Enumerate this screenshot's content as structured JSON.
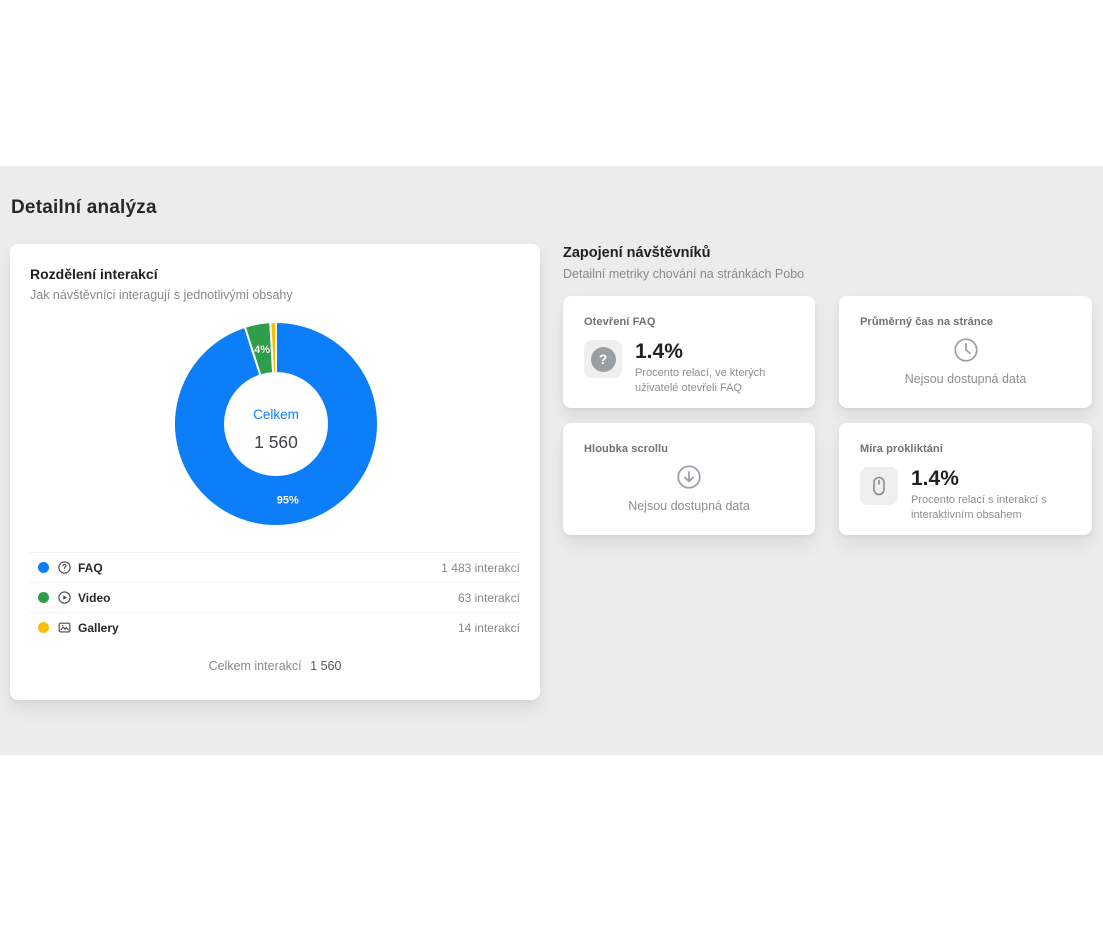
{
  "page": {
    "title": "Detailní analýza"
  },
  "theme": {
    "band_bg": "#ececec",
    "card_bg": "#ffffff",
    "accent_blue": "#0d7efa",
    "green": "#2e9e4a",
    "yellow": "#fbbc04",
    "text_dark": "#202124",
    "text_gray": "#87898c"
  },
  "interactions": {
    "title": "Rozdělení interakcí",
    "subtitle": "Jak návštěvníci interagují s jednotlivými obsahy",
    "legend": [
      {
        "label": "FAQ",
        "value_text": "1 483 interakcí",
        "icon": "question-circle-icon"
      },
      {
        "label": "Video",
        "value_text": "63 interakcí",
        "icon": "play-circle-icon"
      },
      {
        "label": "Gallery",
        "value_text": "14 interakcí",
        "icon": "gallery-icon"
      }
    ],
    "footer_label": "Celkem interakcí",
    "footer_value": "1 560"
  },
  "chart_data": {
    "type": "pie",
    "subtype": "donut",
    "title": "Rozdělení interakcí",
    "categories": [
      "FAQ",
      "Video",
      "Gallery"
    ],
    "values": [
      1483,
      63,
      14
    ],
    "total": 1560,
    "colors": [
      "#0d7efa",
      "#2e9e4a",
      "#fbbc04"
    ],
    "slice_labels": [
      "95%",
      "4%",
      ""
    ],
    "center_label": "Celkem",
    "center_value": "1 560",
    "cutout_ratio": 0.5,
    "start_angle_deg": 0,
    "direction": "clockwise",
    "legend_position": "bottom"
  },
  "engagement": {
    "title": "Zapojení návštěvníků",
    "subtitle": "Detailní metriky chování na stránkách Pobo",
    "cards": [
      {
        "title": "Otevření FAQ",
        "value": "1.4%",
        "description": "Procento relací, ve kterých uživatelé otevřeli FAQ",
        "icon": "question-icon",
        "icon_glyph": "?"
      },
      {
        "title": "Průměrný čas na stránce",
        "empty_text": "Nejsou dostupná data",
        "icon": "clock-icon"
      },
      {
        "title": "Hloubka scrollu",
        "empty_text": "Nejsou dostupná data",
        "icon": "arrow-down-circle-icon"
      },
      {
        "title": "Míra prokliktání",
        "value": "1.4%",
        "description": "Procento relací s interakcí s interaktivním obsahem",
        "icon": "mouse-icon"
      }
    ]
  }
}
